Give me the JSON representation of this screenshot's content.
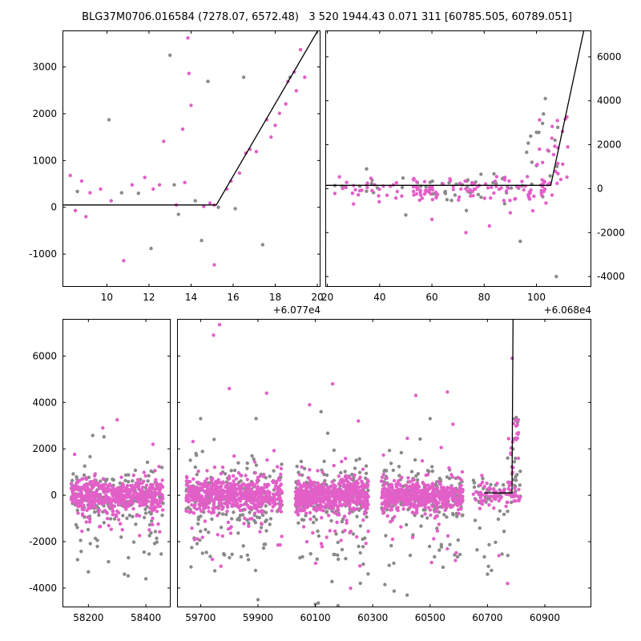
{
  "title": "BLG37M0706.016584 (7278.07, 6572.48)   3 520 1944.43 0.071 311 [60785.505, 60789.051]",
  "styles": {
    "pink": "#e25fc8",
    "gray": "#8a8a8a",
    "line_color": "#000000",
    "axis_color": "#000000",
    "background": "#ffffff"
  },
  "seed": 1337,
  "marker_radius": 2.2,
  "chart_data": [
    {
      "name": "top-left",
      "type": "scatter",
      "title": "",
      "xlabel": "",
      "ylabel": "",
      "py": [
        38,
        358
      ],
      "ylim": [
        -1700,
        3780
      ],
      "yticks": [
        -1000,
        0,
        1000,
        2000,
        3000
      ],
      "ylabel_side": "left",
      "x_offset_label": "+6.077e4",
      "segments": [
        {
          "px": [
            78,
            400
          ],
          "xlim": [
            7.89,
            20.15
          ],
          "xticks": [
            10,
            12,
            14,
            16,
            18,
            20
          ]
        }
      ],
      "line": [
        [
          7.89,
          50
        ],
        [
          15.2,
          50
        ],
        [
          20.15,
          3876
        ]
      ],
      "clusters": [],
      "points": [
        [
          8.26,
          680,
          "p"
        ],
        [
          8.6,
          340,
          "g"
        ],
        [
          8.5,
          -70,
          "p"
        ],
        [
          8.8,
          560,
          "p"
        ],
        [
          9.0,
          -200,
          "p"
        ],
        [
          9.2,
          310,
          "p"
        ],
        [
          9.7,
          390,
          "p"
        ],
        [
          10.1,
          1870,
          "g"
        ],
        [
          10.2,
          140,
          "p"
        ],
        [
          10.7,
          310,
          "g"
        ],
        [
          10.8,
          -1140,
          "p"
        ],
        [
          11.2,
          480,
          "p"
        ],
        [
          11.5,
          300,
          "g"
        ],
        [
          11.8,
          640,
          "p"
        ],
        [
          12.1,
          -880,
          "g"
        ],
        [
          12.2,
          390,
          "p"
        ],
        [
          12.5,
          480,
          "p"
        ],
        [
          12.7,
          1410,
          "p"
        ],
        [
          13.0,
          3250,
          "g"
        ],
        [
          13.2,
          480,
          "g"
        ],
        [
          13.3,
          50,
          "p"
        ],
        [
          13.4,
          -150,
          "g"
        ],
        [
          13.6,
          1670,
          "p"
        ],
        [
          13.7,
          530,
          "p"
        ],
        [
          13.85,
          3620,
          "p"
        ],
        [
          13.9,
          2860,
          "p"
        ],
        [
          14.0,
          2180,
          "p"
        ],
        [
          14.2,
          140,
          "g"
        ],
        [
          14.5,
          -710,
          "g"
        ],
        [
          14.6,
          20,
          "p"
        ],
        [
          14.8,
          2690,
          "g"
        ],
        [
          14.9,
          90,
          "p"
        ],
        [
          15.1,
          50,
          "p"
        ],
        [
          15.1,
          -1230,
          "p"
        ],
        [
          15.3,
          0,
          "g"
        ],
        [
          15.7,
          390,
          "p"
        ],
        [
          15.9,
          560,
          "p"
        ],
        [
          16.1,
          -30,
          "g"
        ],
        [
          16.3,
          730,
          "p"
        ],
        [
          16.5,
          2780,
          "g"
        ],
        [
          16.6,
          1160,
          "p"
        ],
        [
          16.8,
          1240,
          "p"
        ],
        [
          17.1,
          1190,
          "p"
        ],
        [
          17.4,
          -800,
          "g"
        ],
        [
          17.6,
          1870,
          "p"
        ],
        [
          17.8,
          1500,
          "p"
        ],
        [
          18.0,
          1750,
          "p"
        ],
        [
          18.2,
          2010,
          "p"
        ],
        [
          18.5,
          2210,
          "p"
        ],
        [
          18.6,
          2690,
          "p"
        ],
        [
          18.7,
          2780,
          "g"
        ],
        [
          18.9,
          2890,
          "p"
        ],
        [
          19.0,
          2490,
          "p"
        ],
        [
          19.2,
          3370,
          "p"
        ],
        [
          19.4,
          2780,
          "p"
        ]
      ]
    },
    {
      "name": "top-right",
      "type": "scatter",
      "title": "",
      "xlabel": "",
      "ylabel": "",
      "py": [
        38,
        358
      ],
      "ylim": [
        -4470,
        7200
      ],
      "yticks": [
        -4000,
        -2000,
        0,
        2000,
        4000,
        6000
      ],
      "ylabel_side": "right",
      "x_offset_label": "+6.068e4",
      "segments": [
        {
          "px": [
            406,
            738
          ],
          "xlim": [
            19.2,
            121
          ],
          "xticks": [
            20,
            40,
            60,
            80,
            100
          ]
        }
      ],
      "line": [
        [
          19.2,
          150
        ],
        [
          105.5,
          150
        ],
        [
          118.5,
          7400
        ]
      ],
      "clusters": [
        {
          "n": 28,
          "x": [
            22,
            104
          ],
          "mu": 150,
          "sd": 350,
          "c": "g"
        },
        {
          "n": 25,
          "x": [
            55,
            104
          ],
          "mu": 0,
          "sd": 450,
          "c": "g"
        },
        {
          "n": 12,
          "x": [
            96,
            110
          ],
          "yr": [
            400,
            3000
          ],
          "c": "g"
        },
        {
          "n": 40,
          "x": [
            21,
            60
          ],
          "mu": -50,
          "sd": 280,
          "c": "p"
        },
        {
          "n": 95,
          "x": [
            52,
            106
          ],
          "mu": -80,
          "sd": 320,
          "c": "p"
        },
        {
          "n": 20,
          "x": [
            100,
            112
          ],
          "yr": [
            150,
            3400
          ],
          "c": "p"
        }
      ],
      "points": [
        [
          107.6,
          -4000,
          "g"
        ],
        [
          93.8,
          -2400,
          "g"
        ],
        [
          73,
          -2000,
          "p"
        ],
        [
          60,
          -1400,
          "p"
        ],
        [
          103.4,
          4100,
          "g"
        ],
        [
          102.7,
          3400,
          "g"
        ],
        [
          108,
          3100,
          "p"
        ],
        [
          110,
          2600,
          "p"
        ],
        [
          35,
          900,
          "g"
        ],
        [
          30,
          -700,
          "p"
        ],
        [
          112,
          1900,
          "p"
        ],
        [
          50,
          -1200,
          "g"
        ],
        [
          82,
          -1700,
          "p"
        ],
        [
          90,
          -1100,
          "p"
        ]
      ]
    },
    {
      "name": "bottom",
      "type": "scatter",
      "title": "",
      "xlabel": "",
      "ylabel": "",
      "py": [
        398,
        758
      ],
      "ylim": [
        -4830,
        7600
      ],
      "yticks": [
        -4000,
        -2000,
        0,
        2000,
        4000,
        6000
      ],
      "ylabel_side": "left",
      "x_offset_label": "",
      "segments": [
        {
          "px": [
            78,
            213
          ],
          "xlim": [
            58110,
            58486
          ],
          "xticks": [
            58200,
            58400
          ]
        },
        {
          "px": [
            221,
            738
          ],
          "xlim": [
            59618,
            61062
          ],
          "xticks": [
            59700,
            59900,
            60100,
            60300,
            60500,
            60700,
            60900
          ]
        }
      ],
      "line": [
        [
          60688,
          100
        ],
        [
          60785.5,
          100
        ],
        [
          60789,
          7600
        ]
      ],
      "clusters": [
        {
          "n": 140,
          "x": [
            58140,
            58460
          ],
          "mu": 0,
          "sd": 520,
          "c": "g"
        },
        {
          "n": 55,
          "x": [
            58140,
            58460
          ],
          "mu": -800,
          "sd": 1400,
          "c": "g"
        },
        {
          "n": 150,
          "x": [
            59650,
            59985
          ],
          "mu": 0,
          "sd": 520,
          "c": "g"
        },
        {
          "n": 70,
          "x": [
            59650,
            59985
          ],
          "mu": -900,
          "sd": 1500,
          "c": "g"
        },
        {
          "n": 150,
          "x": [
            60030,
            60285
          ],
          "mu": 0,
          "sd": 520,
          "c": "g"
        },
        {
          "n": 70,
          "x": [
            60030,
            60285
          ],
          "mu": -900,
          "sd": 1600,
          "c": "g"
        },
        {
          "n": 140,
          "x": [
            60330,
            60615
          ],
          "mu": 0,
          "sd": 520,
          "c": "g"
        },
        {
          "n": 60,
          "x": [
            60330,
            60615
          ],
          "mu": -800,
          "sd": 1500,
          "c": "g"
        },
        {
          "n": 40,
          "x": [
            60650,
            60815
          ],
          "mu": 0,
          "sd": 450,
          "c": "g"
        },
        {
          "n": 14,
          "x": [
            60770,
            60810
          ],
          "yr": [
            200,
            3300
          ],
          "c": "g"
        },
        {
          "n": 12,
          "x": [
            60660,
            60800
          ],
          "mu": -1800,
          "sd": 900,
          "c": "g"
        },
        {
          "n": 480,
          "x": [
            58140,
            58460
          ],
          "mu": 0,
          "sd": 320,
          "c": "p"
        },
        {
          "n": 60,
          "x": [
            58140,
            58460
          ],
          "mu": -400,
          "sd": 1100,
          "c": "p"
        },
        {
          "n": 540,
          "x": [
            59650,
            59985
          ],
          "mu": 0,
          "sd": 320,
          "c": "p"
        },
        {
          "n": 70,
          "x": [
            59650,
            59985
          ],
          "mu": -500,
          "sd": 1300,
          "c": "p"
        },
        {
          "n": 540,
          "x": [
            60030,
            60285
          ],
          "mu": 0,
          "sd": 320,
          "c": "p"
        },
        {
          "n": 70,
          "x": [
            60030,
            60285
          ],
          "mu": -500,
          "sd": 1300,
          "c": "p"
        },
        {
          "n": 480,
          "x": [
            60330,
            60615
          ],
          "mu": 0,
          "sd": 320,
          "c": "p"
        },
        {
          "n": 60,
          "x": [
            60330,
            60615
          ],
          "mu": -400,
          "sd": 1200,
          "c": "p"
        },
        {
          "n": 80,
          "x": [
            60650,
            60815
          ],
          "mu": 50,
          "sd": 300,
          "c": "p"
        },
        {
          "n": 20,
          "x": [
            60772,
            60808
          ],
          "yr": [
            200,
            3500
          ],
          "c": "p"
        }
      ],
      "points": [
        [
          58300,
          3250,
          "p"
        ],
        [
          58250,
          2900,
          "p"
        ],
        [
          58400,
          -3600,
          "g"
        ],
        [
          58200,
          -3300,
          "g"
        ],
        [
          59766,
          7350,
          "p"
        ],
        [
          59745,
          6900,
          "p"
        ],
        [
          59800,
          4600,
          "p"
        ],
        [
          59930,
          4400,
          "p"
        ],
        [
          59900,
          -4500,
          "g"
        ],
        [
          59700,
          3300,
          "g"
        ],
        [
          60160,
          4800,
          "p"
        ],
        [
          60120,
          3600,
          "g"
        ],
        [
          60080,
          3900,
          "p"
        ],
        [
          60100,
          -4700,
          "g"
        ],
        [
          60250,
          3200,
          "p"
        ],
        [
          60450,
          4300,
          "p"
        ],
        [
          60500,
          3300,
          "g"
        ],
        [
          60560,
          4450,
          "p"
        ],
        [
          60420,
          -4300,
          "g"
        ],
        [
          60786,
          5900,
          "p"
        ],
        [
          60800,
          3350,
          "g"
        ],
        [
          60700,
          -3400,
          "g"
        ],
        [
          60740,
          -2600,
          "p"
        ],
        [
          60770,
          -3800,
          "p"
        ]
      ]
    }
  ]
}
